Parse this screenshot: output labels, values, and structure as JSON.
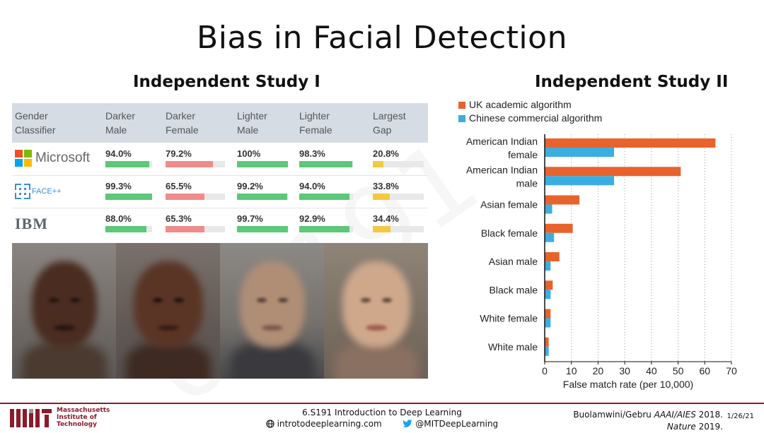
{
  "slide": {
    "title": "Bias in Facial Detection",
    "study1_title": "Independent Study I",
    "study2_title": "Independent Study II",
    "watermark": "6.S191"
  },
  "table": {
    "headers": [
      [
        "Gender",
        "Classifier"
      ],
      [
        "Darker",
        "Male"
      ],
      [
        "Darker",
        "Female"
      ],
      [
        "Lighter",
        "Male"
      ],
      [
        "Lighter",
        "Female"
      ],
      [
        "Largest",
        "Gap"
      ]
    ],
    "rows": [
      {
        "classifier": "Microsoft",
        "values": [
          "94.0%",
          "79.2%",
          "100%",
          "98.3%",
          "20.8%"
        ],
        "fills": [
          0.94,
          0.792,
          1.0,
          0.983,
          0.208
        ]
      },
      {
        "classifier": "FACE++",
        "values": [
          "99.3%",
          "65.5%",
          "99.2%",
          "94.0%",
          "33.8%"
        ],
        "fills": [
          0.993,
          0.655,
          0.992,
          0.94,
          0.338
        ]
      },
      {
        "classifier": "IBM",
        "values": [
          "88.0%",
          "65.3%",
          "99.7%",
          "92.9%",
          "34.4%"
        ],
        "fills": [
          0.88,
          0.653,
          0.997,
          0.929,
          0.344
        ]
      }
    ],
    "bar_colors": [
      "#5cc878",
      "#f08b8b",
      "#5cc878",
      "#5cc878",
      "#f5c842"
    ]
  },
  "chart_data": {
    "type": "bar",
    "orientation": "horizontal",
    "categories": [
      "American Indian female",
      "American Indian male",
      "Asian female",
      "Black female",
      "Asian male",
      "Black male",
      "White female",
      "White male"
    ],
    "category_lines": [
      [
        "American Indian",
        "female"
      ],
      [
        "American Indian",
        "male"
      ],
      [
        "Asian female"
      ],
      [
        "Black female"
      ],
      [
        "Asian male"
      ],
      [
        "Black male"
      ],
      [
        "White female"
      ],
      [
        "White male"
      ]
    ],
    "series": [
      {
        "name": "UK academic algorithm",
        "color": "#e8622c",
        "values": [
          64,
          51,
          13,
          10.5,
          5.5,
          3,
          2.2,
          1.5
        ]
      },
      {
        "name": "Chinese commercial algorithm",
        "color": "#3aaee0",
        "values": [
          26,
          26,
          2.8,
          3.5,
          2.2,
          2.2,
          2.2,
          1.5
        ]
      }
    ],
    "xlabel": "False match rate (per 10,000)",
    "xlim": [
      0,
      70
    ],
    "xticks": [
      "0",
      "10",
      "20",
      "30",
      "40",
      "50",
      "60",
      "70"
    ],
    "grid": "vertical dotted",
    "legend_position": "top-left"
  },
  "footer": {
    "institution": [
      "Massachusetts",
      "Institute of",
      "Technology"
    ],
    "course": "6.S191 Introduction to Deep Learning",
    "website": "introtodeeplearning.com",
    "twitter": "@MITDeepLearning",
    "citation_line1_prefix": "Buolamwini/Gebru ",
    "citation_line1_em": "AAAI/AIES",
    "citation_line1_suffix": " 2018.",
    "citation_line2_em": "Nature",
    "citation_line2_suffix": " 2019.",
    "date": "1/26/21"
  },
  "colors": {
    "accent": "#8a1b2b",
    "twitter": "#1da1f2"
  }
}
